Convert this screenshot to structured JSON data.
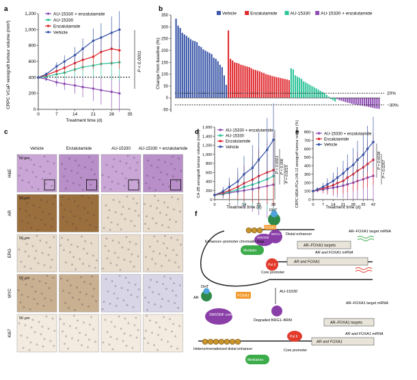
{
  "colors": {
    "vehicle": "#3a56a8",
    "enza": "#e0292e",
    "au": "#2ec49a",
    "combo": "#8f4fb5",
    "text": "#222222",
    "foxa1": "#f39a2c",
    "bromo": "#8a3fa8",
    "mediator": "#3cab4a",
    "pol": "#e23b2b",
    "ar_cap": "#4fa3dc",
    "ar_body": "#2f8a4a",
    "muted": "#cccccc",
    "tissue_he": "#c9a6d6",
    "tissue_he2": "#b88fc8",
    "tissue_ab": "#e8dccd",
    "tissue_ar": "#9b6f3d",
    "tissue_ki": "#f3ebdf"
  },
  "panels": {
    "a": "a",
    "b": "b",
    "c": "c",
    "d": "d",
    "e": "e",
    "f": "f"
  },
  "chart_data": [
    {
      "id": "a",
      "type": "line",
      "xlabel": "Treatment time (d)",
      "ylabel": "CRPC VCaP xenograft tumour volume (mm³)",
      "xticks": [
        0,
        7,
        14,
        21,
        28,
        35
      ],
      "yticks": [
        0,
        200,
        400,
        600,
        800,
        1000,
        1200
      ],
      "xlim": [
        0,
        35
      ],
      "ylim": [
        0,
        1200
      ],
      "pvalue": "P < 0.0001",
      "series": [
        {
          "name": "AU-15330 + enzalutamide",
          "color": "combo",
          "x": [
            0,
            3,
            7,
            10,
            14,
            17,
            21,
            24,
            28,
            31
          ],
          "y": [
            400,
            380,
            340,
            320,
            300,
            280,
            260,
            240,
            220,
            200
          ]
        },
        {
          "name": "AU-15330",
          "color": "au",
          "x": [
            0,
            3,
            7,
            10,
            14,
            17,
            21,
            24,
            28,
            31
          ],
          "y": [
            400,
            410,
            440,
            460,
            500,
            530,
            550,
            570,
            580,
            590
          ]
        },
        {
          "name": "Enzalutamide",
          "color": "enza",
          "x": [
            0,
            3,
            7,
            10,
            14,
            17,
            21,
            24,
            28,
            31
          ],
          "y": [
            400,
            430,
            480,
            520,
            580,
            620,
            660,
            720,
            760,
            740
          ]
        },
        {
          "name": "Vehicle",
          "color": "vehicle",
          "x": [
            0,
            3,
            7,
            10,
            14,
            17,
            21,
            24,
            28,
            31
          ],
          "y": [
            400,
            440,
            540,
            600,
            680,
            760,
            860,
            900,
            960,
            1000
          ]
        }
      ]
    },
    {
      "id": "b",
      "type": "bar",
      "ylabel": "Change from baseline (%)",
      "yticks": [
        -50,
        0,
        50,
        100,
        150,
        200,
        250,
        300,
        350
      ],
      "ylim": [
        -60,
        350
      ],
      "ref_lines": [
        {
          "value": 20,
          "label": "20%"
        },
        {
          "value": -30,
          "label": "−30%"
        }
      ],
      "series": [
        {
          "name": "Vehicle",
          "color": "vehicle",
          "values": [
            335,
            305,
            295,
            275,
            268,
            262,
            255,
            248,
            242,
            240,
            235,
            220,
            215,
            205,
            200,
            195,
            190,
            185,
            170,
            165,
            155,
            140,
            130,
            95,
            55
          ]
        },
        {
          "name": "Enzalutamide",
          "color": "enza",
          "values": [
            285,
            165,
            158,
            150,
            148,
            145,
            140,
            138,
            135,
            132,
            130,
            125,
            120,
            118,
            115,
            112,
            108,
            105,
            100,
            98,
            95,
            92,
            90,
            88,
            86,
            84,
            82,
            80,
            78,
            75
          ]
        },
        {
          "name": "AU-15330",
          "color": "au",
          "values": [
            125,
            120,
            95,
            90,
            85,
            80,
            70,
            65,
            60,
            55,
            50,
            45,
            40,
            35,
            30,
            25,
            20,
            12,
            5,
            -5,
            -10,
            -15
          ]
        },
        {
          "name": "AU-15330 + enzalutamide",
          "color": "combo",
          "values": [
            -5,
            -10,
            -12,
            -15,
            -18,
            -20,
            -22,
            -25,
            -27,
            -28,
            -30,
            -32,
            -33,
            -35,
            -36,
            -38,
            -40,
            -42,
            -44,
            -45,
            -46
          ]
        }
      ]
    },
    {
      "id": "d",
      "type": "line",
      "xlabel": "Treatment time (d)",
      "ylabel": "C4-2B xenograft tumour volume (mm³)",
      "xticks": [
        0,
        7,
        14,
        21,
        28
      ],
      "yticks": [
        0,
        200,
        400,
        600,
        800,
        1000,
        1200,
        1400,
        1600
      ],
      "xlim": [
        0,
        28
      ],
      "ylim": [
        0,
        1600
      ],
      "pvalues": [
        "P < 0.0001",
        "P = 0.006",
        "P = 0.0015"
      ],
      "series": [
        {
          "name": "AU-15330 + enzalutamide",
          "color": "combo",
          "x": [
            0,
            4,
            7,
            11,
            14,
            18,
            21,
            25,
            28
          ],
          "y": [
            100,
            120,
            150,
            180,
            200,
            230,
            260,
            300,
            330
          ]
        },
        {
          "name": "AU-15330",
          "color": "au",
          "x": [
            0,
            4,
            7,
            11,
            14,
            18,
            21,
            25,
            28
          ],
          "y": [
            100,
            130,
            170,
            220,
            280,
            330,
            380,
            450,
            520
          ]
        },
        {
          "name": "Enzalutamide",
          "color": "enza",
          "x": [
            0,
            4,
            7,
            11,
            14,
            18,
            21,
            25,
            28
          ],
          "y": [
            100,
            150,
            200,
            280,
            360,
            440,
            520,
            600,
            650
          ]
        },
        {
          "name": "Vehicle",
          "color": "vehicle",
          "x": [
            0,
            4,
            7,
            11,
            14,
            18,
            21,
            25,
            28
          ],
          "y": [
            100,
            180,
            280,
            400,
            560,
            700,
            880,
            1100,
            1320
          ]
        }
      ]
    },
    {
      "id": "e",
      "type": "line",
      "xlabel": "Treatment time (d)",
      "ylabel": "CRPC MDA-PCa-146-12 xenograft tumour volume (%)",
      "xticks": [
        0,
        7,
        14,
        21,
        28,
        35,
        42
      ],
      "yticks": [
        0,
        100,
        200,
        300,
        400,
        500,
        600,
        700,
        800
      ],
      "xlim": [
        0,
        42
      ],
      "ylim": [
        0,
        800
      ],
      "pvalues": [
        "P = 0.0038",
        "P = 0.0257"
      ],
      "series": [
        {
          "name": "AU-15330 + enzalutamide",
          "color": "combo",
          "x": [
            0,
            3,
            7,
            10,
            14,
            17,
            21,
            24,
            28,
            31,
            35,
            38,
            42
          ],
          "y": [
            100,
            110,
            120,
            130,
            140,
            150,
            165,
            180,
            200,
            220,
            240,
            260,
            280
          ]
        },
        {
          "name": "Enzalutamide",
          "color": "enza",
          "x": [
            0,
            3,
            7,
            10,
            14,
            17,
            21,
            24,
            28,
            31,
            35,
            38,
            42
          ],
          "y": [
            100,
            115,
            130,
            150,
            170,
            195,
            220,
            260,
            300,
            340,
            380,
            420,
            470
          ]
        },
        {
          "name": "Vehicle",
          "color": "vehicle",
          "x": [
            0,
            3,
            7,
            10,
            14,
            17,
            21,
            24,
            28,
            31,
            35,
            38,
            42
          ],
          "y": [
            100,
            120,
            150,
            180,
            220,
            260,
            310,
            360,
            410,
            470,
            530,
            600,
            680
          ]
        }
      ]
    }
  ],
  "panel_c": {
    "columns": [
      "Vehicle",
      "Enzalutamide",
      "AU-15330",
      "AU-15330 + enzalutamide"
    ],
    "rows": [
      "H&E",
      "AR",
      "ERG",
      "MYC",
      "Ki67"
    ],
    "scale": "50 μm"
  },
  "panel_f": {
    "dht": "DHT",
    "ar": "AR",
    "foxa1": "FOXA1",
    "swisnf": "SWI/SNF complex",
    "brg1": "BRG1–BRM",
    "mediator": "Mediator",
    "mediators": "Mediators",
    "pol": "Pol II",
    "distal": "Distal enhancer",
    "loop": "Enhancer–promoter chromatin loop",
    "core": "Core promoter",
    "core2": "Core promoter",
    "targets_top": "AR–FOXA1 targets",
    "ar_foxa1": "AR and FOXA1",
    "target_mrna": "AR–FOXA1 target mRNA",
    "ar_mrna": "AR and FOXA1 mRNA",
    "au15330": "AU-15330",
    "degraded": "Degraded BRG1–BRM",
    "hetero": "Heterochromatinized distal enhancer",
    "targets_bottom": "AR–FOXA1 targets",
    "ar_foxa1_bottom": "AR and FOXA1",
    "target_mrna2": "AR–FOXA1 target mRNA",
    "ar_mrna2": "AR and FOXA1 mRNA"
  }
}
